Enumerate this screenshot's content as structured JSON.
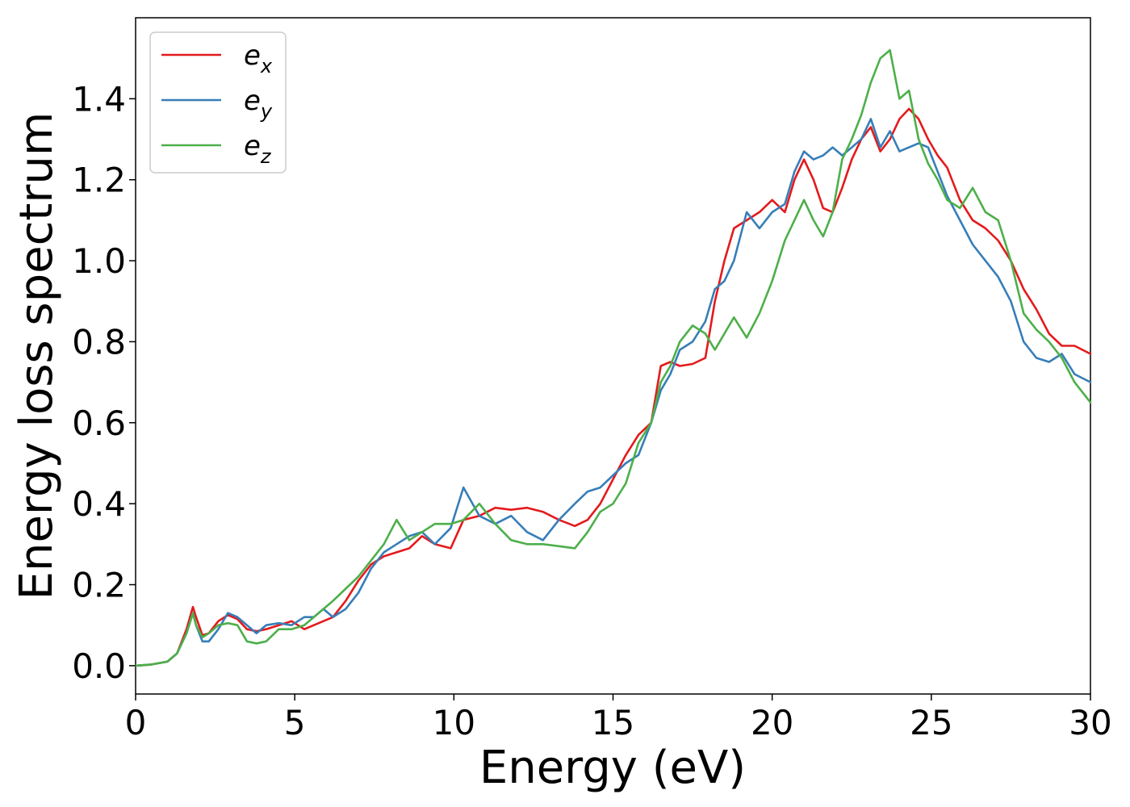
{
  "chart_data": {
    "type": "line",
    "title": "",
    "xlabel": "Energy (eV)",
    "ylabel": "Energy loss spectrum",
    "xlim": [
      0,
      30
    ],
    "ylim": [
      -0.07,
      1.6
    ],
    "x_ticks": [
      0,
      5,
      10,
      15,
      20,
      25,
      30
    ],
    "x_tick_labels": [
      "0",
      "5",
      "10",
      "15",
      "20",
      "25",
      "30"
    ],
    "y_ticks": [
      0.0,
      0.2,
      0.4,
      0.6,
      0.8,
      1.0,
      1.2,
      1.4
    ],
    "y_tick_labels": [
      "0.0",
      "0.2",
      "0.4",
      "0.6",
      "0.8",
      "1.0",
      "1.2",
      "1.4"
    ],
    "grid": false,
    "legend_position": "top-left",
    "series": [
      {
        "name": "e_x",
        "label_base": "e",
        "label_sub": "x",
        "color": "#e41a1c",
        "x": [
          0,
          0.5,
          1.0,
          1.3,
          1.6,
          1.8,
          1.9,
          2.1,
          2.3,
          2.6,
          2.9,
          3.2,
          3.5,
          3.8,
          4.1,
          4.5,
          4.9,
          5.3,
          5.6,
          5.9,
          6.2,
          6.6,
          7.0,
          7.4,
          7.8,
          8.2,
          8.6,
          9.0,
          9.4,
          9.9,
          10.3,
          10.8,
          11.3,
          11.8,
          12.3,
          12.8,
          13.3,
          13.8,
          14.2,
          14.6,
          15.0,
          15.4,
          15.8,
          16.2,
          16.5,
          16.8,
          17.1,
          17.5,
          17.9,
          18.2,
          18.5,
          18.8,
          19.2,
          19.6,
          20.0,
          20.4,
          20.7,
          21.0,
          21.3,
          21.6,
          21.9,
          22.2,
          22.5,
          22.8,
          23.1,
          23.4,
          23.7,
          24.0,
          24.3,
          24.6,
          24.9,
          25.2,
          25.5,
          25.9,
          26.3,
          26.7,
          27.1,
          27.5,
          27.9,
          28.3,
          28.7,
          29.1,
          29.5,
          30.0
        ],
        "y": [
          0,
          0.003,
          0.01,
          0.03,
          0.09,
          0.145,
          0.12,
          0.075,
          0.08,
          0.11,
          0.125,
          0.115,
          0.09,
          0.085,
          0.09,
          0.1,
          0.11,
          0.09,
          0.1,
          0.11,
          0.12,
          0.16,
          0.21,
          0.25,
          0.27,
          0.28,
          0.29,
          0.32,
          0.3,
          0.29,
          0.36,
          0.37,
          0.39,
          0.385,
          0.39,
          0.38,
          0.36,
          0.345,
          0.36,
          0.4,
          0.46,
          0.52,
          0.57,
          0.6,
          0.74,
          0.75,
          0.74,
          0.745,
          0.76,
          0.9,
          1.0,
          1.08,
          1.1,
          1.12,
          1.15,
          1.12,
          1.2,
          1.25,
          1.2,
          1.13,
          1.12,
          1.18,
          1.25,
          1.3,
          1.33,
          1.27,
          1.3,
          1.35,
          1.375,
          1.35,
          1.3,
          1.26,
          1.23,
          1.15,
          1.1,
          1.08,
          1.05,
          1.0,
          0.93,
          0.88,
          0.82,
          0.79,
          0.79,
          0.77
        ]
      },
      {
        "name": "e_y",
        "label_base": "e",
        "label_sub": "y",
        "color": "#377eb8",
        "x": [
          0,
          0.5,
          1.0,
          1.3,
          1.6,
          1.8,
          1.9,
          2.1,
          2.3,
          2.6,
          2.9,
          3.2,
          3.5,
          3.8,
          4.1,
          4.5,
          4.9,
          5.3,
          5.6,
          5.9,
          6.2,
          6.6,
          7.0,
          7.4,
          7.8,
          8.2,
          8.6,
          9.0,
          9.4,
          9.9,
          10.3,
          10.8,
          11.3,
          11.8,
          12.3,
          12.8,
          13.3,
          13.8,
          14.2,
          14.6,
          15.0,
          15.4,
          15.8,
          16.2,
          16.5,
          16.8,
          17.1,
          17.5,
          17.9,
          18.2,
          18.5,
          18.8,
          19.2,
          19.6,
          20.0,
          20.4,
          20.7,
          21.0,
          21.3,
          21.6,
          21.9,
          22.2,
          22.5,
          22.8,
          23.1,
          23.4,
          23.7,
          24.0,
          24.3,
          24.6,
          24.9,
          25.2,
          25.5,
          25.9,
          26.3,
          26.7,
          27.1,
          27.5,
          27.9,
          28.3,
          28.7,
          29.1,
          29.5,
          30.0
        ],
        "y": [
          0,
          0.003,
          0.01,
          0.03,
          0.08,
          0.13,
          0.1,
          0.06,
          0.06,
          0.09,
          0.13,
          0.12,
          0.1,
          0.08,
          0.1,
          0.105,
          0.1,
          0.12,
          0.12,
          0.14,
          0.12,
          0.14,
          0.18,
          0.24,
          0.28,
          0.3,
          0.32,
          0.33,
          0.3,
          0.34,
          0.44,
          0.37,
          0.35,
          0.37,
          0.33,
          0.31,
          0.36,
          0.4,
          0.43,
          0.44,
          0.47,
          0.5,
          0.52,
          0.6,
          0.68,
          0.72,
          0.78,
          0.8,
          0.85,
          0.93,
          0.95,
          1.0,
          1.12,
          1.08,
          1.12,
          1.14,
          1.22,
          1.27,
          1.25,
          1.26,
          1.28,
          1.26,
          1.28,
          1.3,
          1.35,
          1.28,
          1.32,
          1.27,
          1.28,
          1.29,
          1.28,
          1.22,
          1.16,
          1.1,
          1.04,
          1.0,
          0.96,
          0.9,
          0.8,
          0.76,
          0.75,
          0.77,
          0.72,
          0.7
        ]
      },
      {
        "name": "e_z",
        "label_base": "e",
        "label_sub": "z",
        "color": "#4daf4a",
        "x": [
          0,
          0.5,
          1.0,
          1.3,
          1.6,
          1.8,
          1.9,
          2.1,
          2.3,
          2.6,
          2.9,
          3.2,
          3.5,
          3.8,
          4.1,
          4.5,
          4.9,
          5.3,
          5.6,
          5.9,
          6.2,
          6.6,
          7.0,
          7.4,
          7.8,
          8.2,
          8.6,
          9.0,
          9.4,
          9.9,
          10.3,
          10.8,
          11.3,
          11.8,
          12.3,
          12.8,
          13.3,
          13.8,
          14.2,
          14.6,
          15.0,
          15.4,
          15.8,
          16.2,
          16.5,
          16.8,
          17.1,
          17.5,
          17.9,
          18.2,
          18.5,
          18.8,
          19.2,
          19.6,
          20.0,
          20.4,
          20.7,
          21.0,
          21.3,
          21.6,
          21.9,
          22.2,
          22.5,
          22.8,
          23.1,
          23.4,
          23.7,
          24.0,
          24.3,
          24.6,
          24.9,
          25.2,
          25.5,
          25.9,
          26.3,
          26.7,
          27.1,
          27.5,
          27.9,
          28.3,
          28.7,
          29.1,
          29.5,
          30.0
        ],
        "y": [
          0,
          0.003,
          0.01,
          0.03,
          0.08,
          0.13,
          0.1,
          0.07,
          0.08,
          0.1,
          0.105,
          0.1,
          0.06,
          0.055,
          0.06,
          0.09,
          0.09,
          0.1,
          0.12,
          0.14,
          0.16,
          0.19,
          0.22,
          0.26,
          0.3,
          0.36,
          0.31,
          0.33,
          0.35,
          0.35,
          0.36,
          0.4,
          0.35,
          0.31,
          0.3,
          0.3,
          0.295,
          0.29,
          0.33,
          0.38,
          0.4,
          0.45,
          0.55,
          0.6,
          0.7,
          0.74,
          0.8,
          0.84,
          0.82,
          0.78,
          0.82,
          0.86,
          0.81,
          0.87,
          0.95,
          1.05,
          1.1,
          1.15,
          1.1,
          1.06,
          1.12,
          1.25,
          1.3,
          1.36,
          1.44,
          1.5,
          1.52,
          1.4,
          1.42,
          1.3,
          1.24,
          1.2,
          1.15,
          1.13,
          1.18,
          1.12,
          1.1,
          1.0,
          0.87,
          0.83,
          0.8,
          0.76,
          0.7,
          0.65
        ]
      }
    ]
  }
}
